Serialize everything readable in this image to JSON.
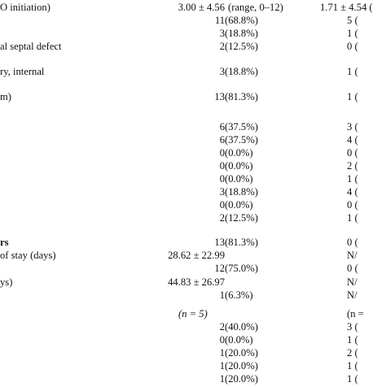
{
  "rows": [
    {
      "label": "O initiation)",
      "bold": false,
      "left_num": "3.00 ± 4.56",
      "left_pct": "(range, 0–12)",
      "right": "1.71 ± 4.54 ("
    },
    {
      "label": "",
      "bold": false,
      "left_num": "11",
      "left_pct": "(68.8%)",
      "right": "5 ("
    },
    {
      "label": "",
      "bold": false,
      "left_num": "3",
      "left_pct": "(18.8%)",
      "right": "1 ("
    },
    {
      "label": "al septal defect",
      "bold": false,
      "left_num": "2",
      "left_pct": "(12.5%)",
      "right": "0 ("
    },
    {
      "label": "ry, internal",
      "bold": false,
      "left_num": "3",
      "left_pct": "(18.8%)",
      "right": "1 ("
    },
    {
      "label": "m)",
      "bold": false,
      "left_num": "13",
      "left_pct": "(81.3%)",
      "right": "1 ("
    },
    {
      "label": "",
      "bold": false,
      "left_num": "6",
      "left_pct": "(37.5%)",
      "right": "3 ("
    },
    {
      "label": "",
      "bold": false,
      "left_num": "6",
      "left_pct": "(37.5%)",
      "right": "4 ("
    },
    {
      "label": "",
      "bold": false,
      "left_num": "0",
      "left_pct": "(0.0%)",
      "right": "0 ("
    },
    {
      "label": "",
      "bold": false,
      "left_num": "0",
      "left_pct": "(0.0%)",
      "right": "2 ("
    },
    {
      "label": "",
      "bold": false,
      "left_num": "0",
      "left_pct": "(0.0%)",
      "right": "1 ("
    },
    {
      "label": "",
      "bold": false,
      "left_num": "3",
      "left_pct": "(18.8%)",
      "right": "4 ("
    },
    {
      "label": "",
      "bold": false,
      "left_num": "0",
      "left_pct": "(0.0%)",
      "right": "0 ("
    },
    {
      "label": "",
      "bold": false,
      "left_num": "2",
      "left_pct": "(12.5%)",
      "right": "1 ("
    },
    {
      "label": "rs",
      "bold": true,
      "left_num": "13",
      "left_pct": "(81.3%)",
      "right": "0 ("
    },
    {
      "label": "of stay  (days)",
      "bold": false,
      "left_num": "28.62 ± 22.99",
      "left_pct": "",
      "right": "N/"
    },
    {
      "label": "",
      "bold": false,
      "left_num": "12",
      "left_pct": "(75.0%)",
      "right": "0 ("
    },
    {
      "label": "ys)",
      "bold": false,
      "left_num": "44.83 ± 26.97",
      "left_pct": "",
      "right": "N/"
    },
    {
      "label": "",
      "bold": false,
      "left_num": "1",
      "left_pct": "(6.3%)",
      "right": "N/"
    },
    {
      "label": "",
      "bold": false,
      "center": "(n = 5)",
      "right": "(n ="
    },
    {
      "label": "",
      "bold": false,
      "left_num": "2",
      "left_pct": "(40.0%)",
      "right": "3 ("
    },
    {
      "label": "",
      "bold": false,
      "left_num": "0",
      "left_pct": "(0.0%)",
      "right": "1 ("
    },
    {
      "label": "",
      "bold": false,
      "left_num": "1",
      "left_pct": "(20.0%)",
      "right": "2 ("
    },
    {
      "label": "",
      "bold": false,
      "left_num": "1",
      "left_pct": "(20.0%)",
      "right": "1 ("
    },
    {
      "label": "",
      "bold": false,
      "left_num": "1",
      "left_pct": "(20.0%)",
      "right": "1 ("
    }
  ]
}
